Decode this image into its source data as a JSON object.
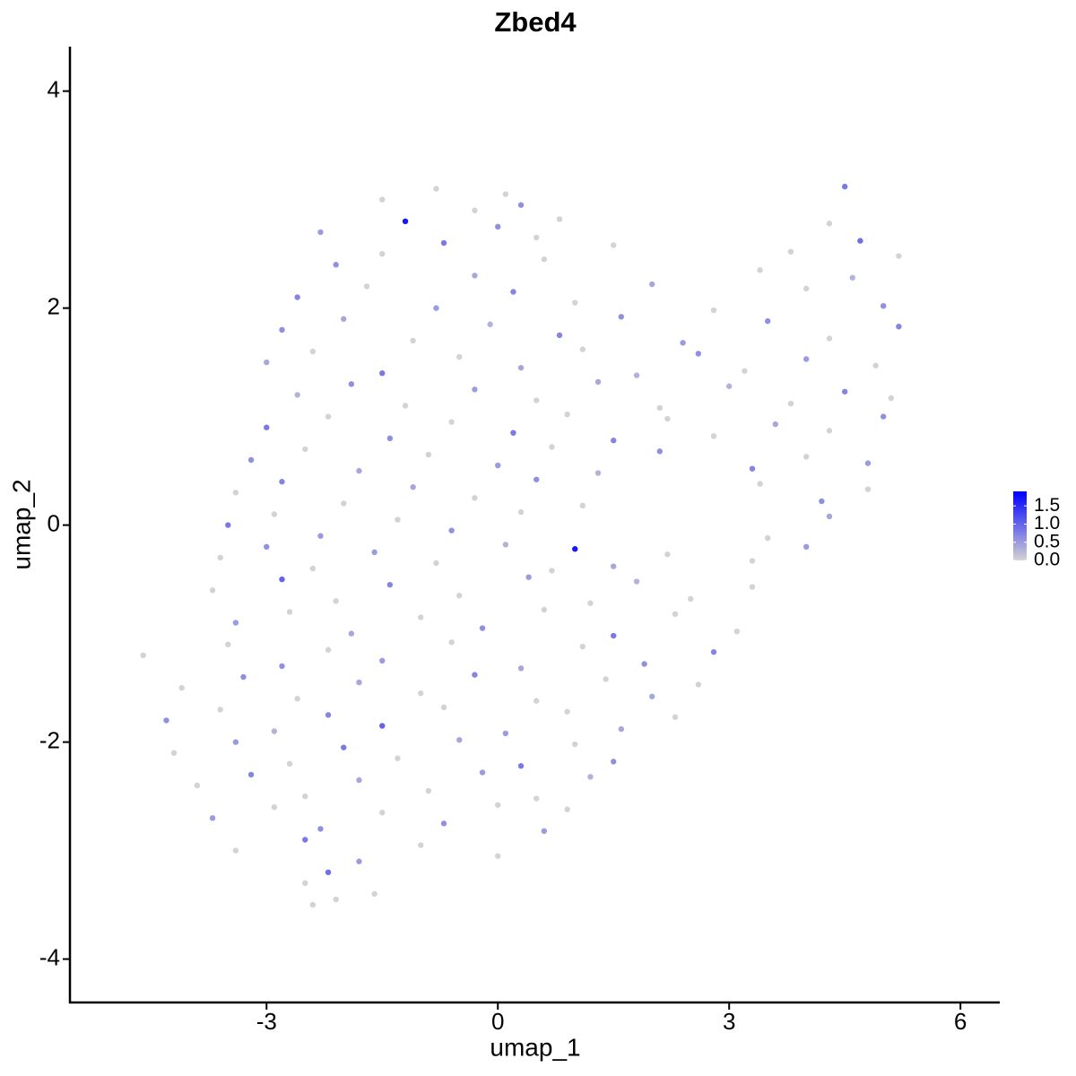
{
  "chart_data": {
    "type": "scatter",
    "title": "Zbed4",
    "xlabel": "umap_1",
    "ylabel": "umap_2",
    "xlim": [
      -5.55,
      6.51
    ],
    "ylim": [
      -4.4,
      4.41
    ],
    "xticks": [
      -3,
      0,
      3,
      6
    ],
    "yticks": [
      -4,
      -2,
      0,
      2,
      4
    ],
    "colorbar": {
      "lim": [
        0,
        1.9
      ],
      "colors": [
        "#d3d3d3",
        "#0000ff"
      ],
      "ticks": [
        {
          "value": 0,
          "label": "0.0"
        },
        {
          "value": 0.5,
          "label": "0.5"
        },
        {
          "value": 1,
          "label": "1.0"
        },
        {
          "value": 1.5,
          "label": "1.5"
        }
      ]
    },
    "x": [
      -1.5,
      -0.8,
      -0.3,
      0.1,
      0.3,
      4.5,
      -2.3,
      -1.2,
      -0.7,
      0,
      0.5,
      0.8,
      1.5,
      4.3,
      4.7,
      -2.1,
      -1.5,
      -0.3,
      0.6,
      3.4,
      3.8,
      4.6,
      5.2,
      -2.6,
      -1.7,
      -0.8,
      0.2,
      1.0,
      2.0,
      2.8,
      4.0,
      5.0,
      -2.8,
      -2.0,
      -1.1,
      -0.1,
      0.8,
      1.6,
      2.4,
      3.5,
      4.3,
      5.2,
      -3.0,
      -2.4,
      -1.5,
      -0.5,
      0.3,
      1.1,
      1.8,
      2.6,
      3.2,
      4.0,
      4.9,
      -2.6,
      -1.9,
      -1.2,
      -0.3,
      0.5,
      1.3,
      2.1,
      3.0,
      3.8,
      4.5,
      5.1,
      -3.0,
      -2.2,
      -1.4,
      -0.6,
      0.2,
      0.9,
      1.5,
      2.2,
      2.8,
      3.6,
      4.3,
      5.0,
      -3.2,
      -2.5,
      -1.8,
      -0.9,
      0,
      0.7,
      1.3,
      2.1,
      3.3,
      4.0,
      4.8,
      -3.4,
      -2.8,
      -2.0,
      -1.1,
      -0.3,
      0.5,
      1.1,
      3.4,
      4.2,
      4.8,
      -3.5,
      -2.9,
      -2.3,
      -1.3,
      -0.6,
      0.3,
      3.5,
      4.3,
      -3.6,
      -3.0,
      -2.4,
      -1.6,
      -0.8,
      0.1,
      0.7,
      1.0,
      1.5,
      2.2,
      3.3,
      4.0,
      -3.7,
      -2.8,
      -2.1,
      -1.4,
      -0.5,
      0.4,
      1.2,
      1.8,
      2.5,
      3.3,
      -3.4,
      -2.7,
      -1.9,
      -1.0,
      -0.2,
      0.6,
      1.5,
      2.3,
      3.1,
      -4.6,
      -3.5,
      -2.8,
      -2.2,
      -1.5,
      -0.6,
      0.3,
      1.1,
      1.9,
      2.8,
      -4.1,
      -3.3,
      -2.6,
      -1.8,
      -1.0,
      -0.3,
      0.5,
      1.4,
      2.0,
      2.6,
      -4.3,
      -3.6,
      -2.9,
      -2.2,
      -1.5,
      -0.7,
      0.1,
      0.9,
      1.6,
      2.3,
      -4.2,
      -3.4,
      -2.7,
      -2.0,
      -1.3,
      -0.5,
      0.3,
      1.0,
      1.5,
      -3.9,
      -3.2,
      -2.5,
      -1.8,
      -0.9,
      -0.2,
      0.5,
      1.2,
      -3.7,
      -2.9,
      -2.3,
      -1.5,
      -0.7,
      0,
      0.6,
      0.9,
      -3.4,
      -2.5,
      -1.8,
      -1.0,
      0,
      -2.5,
      -2.2,
      -1.6,
      -2.4,
      -2.1
    ],
    "values": [
      3.0,
      3.1,
      2.9,
      3.05,
      2.95,
      3.12,
      2.7,
      2.8,
      2.6,
      2.75,
      2.65,
      2.82,
      2.58,
      2.78,
      2.62,
      2.4,
      2.5,
      2.3,
      2.45,
      2.35,
      2.52,
      2.28,
      2.48,
      2.1,
      2.2,
      2.0,
      2.15,
      2.05,
      2.22,
      1.98,
      2.18,
      2.02,
      1.8,
      1.9,
      1.7,
      1.85,
      1.75,
      1.92,
      1.68,
      1.88,
      1.72,
      1.83,
      1.5,
      1.6,
      1.4,
      1.55,
      1.45,
      1.62,
      1.38,
      1.58,
      1.42,
      1.53,
      1.47,
      1.2,
      1.3,
      1.1,
      1.25,
      1.15,
      1.32,
      1.08,
      1.28,
      1.12,
      1.23,
      1.17,
      0.9,
      1.0,
      0.8,
      0.95,
      0.85,
      1.02,
      0.78,
      0.98,
      0.82,
      0.93,
      0.87,
      1.0,
      0.6,
      0.7,
      0.5,
      0.65,
      0.55,
      0.72,
      0.48,
      0.68,
      0.52,
      0.63,
      0.57,
      0.3,
      0.4,
      0.2,
      0.35,
      0.25,
      0.42,
      0.18,
      0.38,
      0.22,
      0.33,
      0,
      0.1,
      -0.1,
      0.05,
      -0.05,
      0.12,
      -0.12,
      0.08,
      -0.3,
      -0.2,
      -0.4,
      -0.25,
      -0.35,
      -0.18,
      -0.42,
      -0.22,
      -0.38,
      -0.27,
      -0.33,
      -0.2,
      -0.6,
      -0.5,
      -0.7,
      -0.55,
      -0.65,
      -0.48,
      -0.72,
      -0.52,
      -0.68,
      -0.57,
      -0.9,
      -0.8,
      -1.0,
      -0.85,
      -0.95,
      -0.78,
      -1.02,
      -0.82,
      -0.98,
      -1.2,
      -1.1,
      -1.3,
      -1.15,
      -1.25,
      -1.08,
      -1.32,
      -1.12,
      -1.28,
      -1.17,
      -1.5,
      -1.4,
      -1.6,
      -1.45,
      -1.55,
      -1.38,
      -1.62,
      -1.42,
      -1.58,
      -1.47,
      -1.8,
      -1.7,
      -1.9,
      -1.75,
      -1.85,
      -1.68,
      -1.92,
      -1.72,
      -1.88,
      -1.77,
      -2.1,
      -2.0,
      -2.2,
      -2.05,
      -2.15,
      -1.98,
      -2.22,
      -2.02,
      -2.18,
      -2.4,
      -2.3,
      -2.5,
      -2.35,
      -2.45,
      -2.28,
      -2.52,
      -2.32,
      -2.7,
      -2.6,
      -2.8,
      -2.65,
      -2.75,
      -2.58,
      -2.82,
      -2.62,
      -3.0,
      -2.9,
      -3.1,
      -2.95,
      -3.05,
      -3.3,
      -3.2,
      -3.4,
      -3.5,
      -3.45
    ],
    "expression": [
      0,
      0,
      0,
      0,
      0.6,
      0.8,
      0.5,
      1.7,
      0.8,
      0.6,
      0,
      0,
      0,
      0,
      0.9,
      0.6,
      0,
      0.4,
      0,
      0,
      0,
      0.3,
      0,
      0.7,
      0,
      0.5,
      0.7,
      0,
      0.4,
      0,
      0,
      0.6,
      0.6,
      0.4,
      0,
      0.3,
      0.7,
      0.6,
      0.5,
      0.6,
      0,
      0.7,
      0.4,
      0,
      0.8,
      0,
      0.4,
      0,
      0.3,
      0.6,
      0,
      0.5,
      0,
      0.3,
      0.6,
      0,
      0.5,
      0,
      0.4,
      0,
      0.3,
      0,
      0.7,
      0,
      0.8,
      0,
      0.6,
      0,
      0.8,
      0,
      0.7,
      0,
      0,
      0.4,
      0,
      0.6,
      0.6,
      0,
      0.4,
      0,
      0.5,
      0,
      0.3,
      0.6,
      0.7,
      0,
      0.5,
      0,
      0.7,
      0,
      0.4,
      0,
      0.6,
      0,
      0,
      0.6,
      0,
      0.8,
      0,
      0.5,
      0,
      0.6,
      0,
      0,
      0.4,
      0,
      0.6,
      0,
      0.5,
      0,
      0.3,
      0,
      1.7,
      0.4,
      0,
      0,
      0.5,
      0,
      1.0,
      0,
      0.7,
      0,
      0.5,
      0,
      0.3,
      0,
      0,
      0.5,
      0,
      0.4,
      0,
      0.6,
      0,
      0.8,
      0,
      0,
      0,
      0,
      0.6,
      0,
      0.5,
      0,
      0.4,
      0,
      0.6,
      0.7,
      0,
      0.6,
      0,
      0.4,
      0,
      0.7,
      0,
      0,
      0.4,
      0,
      0.6,
      0,
      0.3,
      0.7,
      1.0,
      0,
      0.5,
      0,
      0.4,
      0,
      0,
      0.5,
      0,
      0.8,
      0,
      0.4,
      0.8,
      0,
      0.6,
      0,
      0.7,
      0,
      0.4,
      0,
      0.5,
      0,
      0.3,
      0.5,
      0,
      0.6,
      0,
      0.6,
      0,
      0.5,
      0,
      0,
      0.8,
      0.5,
      0,
      0,
      0,
      0.9,
      0,
      0,
      0
    ]
  }
}
